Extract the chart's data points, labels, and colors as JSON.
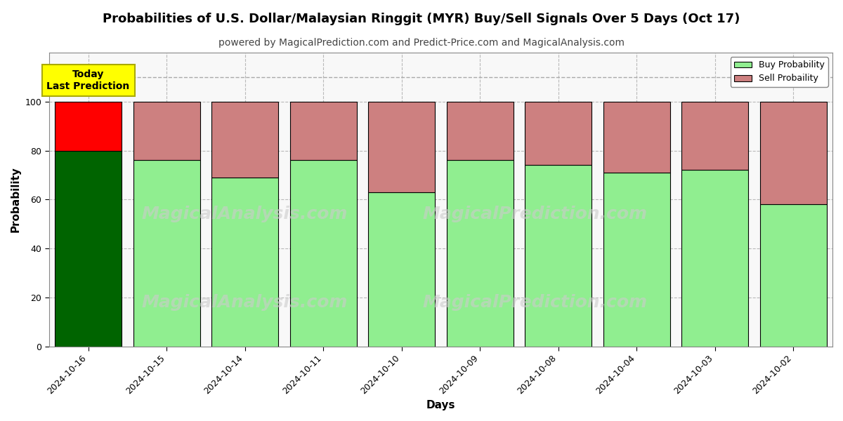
{
  "title": "Probabilities of U.S. Dollar/Malaysian Ringgit (MYR) Buy/Sell Signals Over 5 Days (Oct 17)",
  "subtitle": "powered by MagicalPrediction.com and Predict-Price.com and MagicalAnalysis.com",
  "xlabel": "Days",
  "ylabel": "Probability",
  "dates": [
    "2024-10-16",
    "2024-10-15",
    "2024-10-14",
    "2024-10-11",
    "2024-10-10",
    "2024-10-09",
    "2024-10-08",
    "2024-10-04",
    "2024-10-03",
    "2024-10-02"
  ],
  "buy_values": [
    80,
    76,
    69,
    76,
    63,
    76,
    74,
    71,
    72,
    58
  ],
  "sell_values": [
    20,
    24,
    31,
    24,
    37,
    24,
    26,
    29,
    28,
    42
  ],
  "first_bar_buy_color": "#006400",
  "first_bar_sell_color": "#FF0000",
  "other_buy_color": "#90EE90",
  "other_sell_color": "#CD8080",
  "bar_edge_color": "#000000",
  "bar_linewidth": 0.8,
  "bar_width": 0.85,
  "ylim": [
    0,
    120
  ],
  "yticks": [
    0,
    20,
    40,
    60,
    80,
    100
  ],
  "dashed_line_y": 110,
  "annotation_box_text": "Today\nLast Prediction",
  "annotation_box_facecolor": "#FFFF00",
  "annotation_box_edgecolor": "#AAAA00",
  "grid_color": "#AAAAAA",
  "grid_linestyle": "--",
  "grid_alpha": 0.8,
  "watermark_text1": "MagicalAnalysis.com",
  "watermark_text2": "MagicalPrediction.com",
  "watermark_color": "#CCCCCC",
  "watermark_alpha": 0.6,
  "watermark_fontsize": 18,
  "legend_buy_color": "#90EE90",
  "legend_sell_color": "#CD8080",
  "legend_buy_label": "Buy Probability",
  "legend_sell_label": "Sell Probaility",
  "title_fontsize": 13,
  "subtitle_fontsize": 10,
  "axis_label_fontsize": 11,
  "tick_fontsize": 9,
  "figsize": [
    12,
    6
  ],
  "dpi": 100,
  "plot_bg_color": "#F8F8F8"
}
